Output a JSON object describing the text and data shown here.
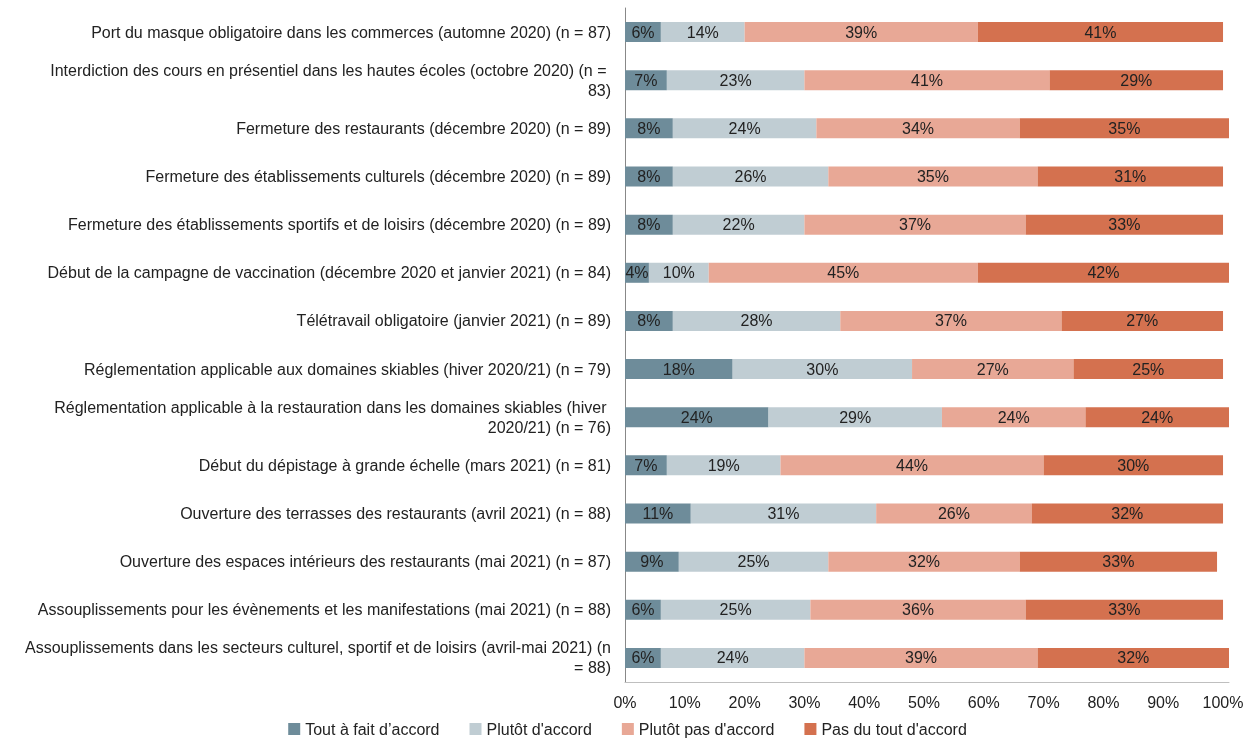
{
  "chart_data": {
    "type": "bar",
    "orientation": "horizontal",
    "stacked": true,
    "legend": "bottom",
    "grid": false,
    "categories": [
      "Port du masque obligatoire dans les commerces (automne 2020) (n = 87)",
      "Interdiction des cours en présentiel dans les hautes écoles (octobre 2020) (n = 83)",
      "Fermeture des restaurants (décembre 2020) (n = 89)",
      "Fermeture des établissements culturels (décembre 2020) (n = 89)",
      "Fermeture des établissements sportifs et de loisirs (décembre 2020) (n = 89)",
      "Début de la campagne de vaccination (décembre 2020 et janvier 2021) (n = 84)",
      "Télétravail obligatoire (janvier 2021) (n = 89)",
      "Réglementation applicable aux domaines skiables (hiver 2020/21) (n = 79)",
      "Réglementation applicable à la restauration dans les domaines skiables (hiver 2020/21) (n = 76)",
      "Début du dépistage à grande échelle (mars 2021) (n = 81)",
      "Ouverture des terrasses des restaurants (avril 2021) (n = 88)",
      "Ouverture des espaces intérieurs des restaurants (mai 2021) (n = 87)",
      "Assouplissements pour les évènements et les manifestations (mai 2021) (n = 88)",
      "Assouplissements dans les secteurs culturel, sportif et de loisirs (avril-mai 2021) (n = 88)"
    ],
    "series": [
      {
        "name": "Tout à fait d’accord",
        "color": "#6e8c9a",
        "values": [
          6,
          7,
          8,
          8,
          8,
          4,
          8,
          18,
          24,
          7,
          11,
          9,
          6,
          6
        ],
        "value_labels": [
          "6%",
          "7%",
          "8%",
          "8%",
          "8%",
          "4%",
          "8%",
          "18%",
          "24%",
          "7%",
          "11%",
          "9%",
          "6%",
          "6%"
        ]
      },
      {
        "name": "Plutôt d'accord",
        "color": "#c0cdd3",
        "values": [
          14,
          23,
          24,
          26,
          22,
          10,
          28,
          30,
          29,
          19,
          31,
          25,
          25,
          24
        ],
        "value_labels": [
          "14%",
          "23%",
          "24%",
          "26%",
          "22%",
          "10%",
          "28%",
          "30%",
          "29%",
          "19%",
          "31%",
          "25%",
          "25%",
          "24%"
        ]
      },
      {
        "name": "Plutôt pas d'accord",
        "color": "#e8a896",
        "values": [
          39,
          41,
          34,
          35,
          37,
          45,
          37,
          27,
          24,
          44,
          26,
          32,
          36,
          39
        ],
        "value_labels": [
          "39%",
          "41%",
          "34%",
          "35%",
          "37%",
          "45%",
          "37%",
          "27%",
          "24%",
          "44%",
          "26%",
          "32%",
          "36%",
          "39%"
        ]
      },
      {
        "name": "Pas du tout d'accord",
        "color": "#d4714f",
        "values": [
          41,
          29,
          35,
          31,
          33,
          42,
          27,
          25,
          24,
          30,
          32,
          33,
          33,
          32
        ],
        "value_labels": [
          "41%",
          "29%",
          "35%",
          "31%",
          "33%",
          "42%",
          "27%",
          "25%",
          "24%",
          "30%",
          "32%",
          "33%",
          "33%",
          "32%"
        ]
      }
    ],
    "xlim": [
      0,
      101
    ],
    "xticks": [
      {
        "value": 0,
        "label": "0%"
      },
      {
        "value": 10,
        "label": "10%"
      },
      {
        "value": 20,
        "label": "20%"
      },
      {
        "value": 30,
        "label": "30%"
      },
      {
        "value": 40,
        "label": "40%"
      },
      {
        "value": 50,
        "label": "50%"
      },
      {
        "value": 60,
        "label": "60%"
      },
      {
        "value": 70,
        "label": "70%"
      },
      {
        "value": 80,
        "label": "80%"
      },
      {
        "value": 90,
        "label": "90%"
      },
      {
        "value": 100,
        "label": "100%"
      }
    ]
  }
}
